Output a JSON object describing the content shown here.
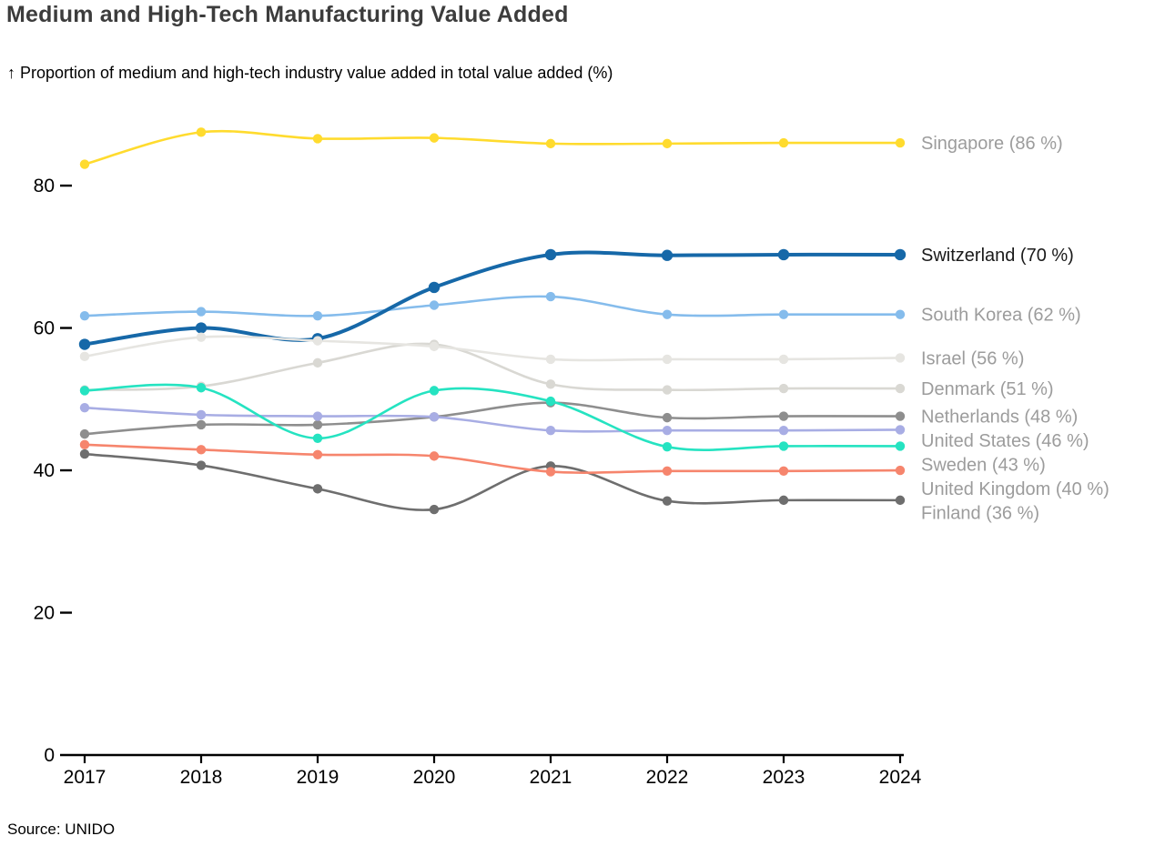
{
  "header": {
    "title": "Medium and High-Tech Manufacturing Value Added",
    "subtitle": "↑ Proportion of medium and high-tech industry value added in total value added (%)"
  },
  "footer": {
    "source": "Source: UNIDO"
  },
  "chart_data": {
    "type": "line",
    "title": "Medium and High-Tech Manufacturing Value Added",
    "ylabel": "Proportion of medium and high-tech industry value added in total value added (%)",
    "x": [
      2017,
      2018,
      2019,
      2020,
      2021,
      2022,
      2023,
      2024
    ],
    "yticks": [
      0,
      20,
      40,
      60,
      80
    ],
    "ylim": [
      0,
      90
    ],
    "grid": false,
    "legend_position": "right-end-labels",
    "series": [
      {
        "name": "Singapore",
        "label": "Singapore (86 %)",
        "color": "#FFDB2E",
        "emphasized": false,
        "values": [
          83.0,
          87.5,
          86.6,
          86.7,
          85.9,
          85.9,
          86.0,
          86.0
        ]
      },
      {
        "name": "Switzerland",
        "label": "Switzerland (70 %)",
        "color": "#1668A8",
        "emphasized": true,
        "values": [
          57.7,
          60.0,
          58.5,
          65.7,
          70.3,
          70.2,
          70.3,
          70.3
        ]
      },
      {
        "name": "South Korea",
        "label": "South Korea (62 %)",
        "color": "#85BCEC",
        "emphasized": false,
        "values": [
          61.7,
          62.3,
          61.7,
          63.2,
          64.4,
          61.9,
          61.9,
          61.9
        ]
      },
      {
        "name": "Israel",
        "label": "Israel (56 %)",
        "color": "#E6E5E1",
        "emphasized": false,
        "values": [
          56.0,
          58.7,
          58.2,
          57.4,
          55.6,
          55.6,
          55.6,
          55.8
        ]
      },
      {
        "name": "Denmark",
        "label": "Denmark (51 %)",
        "color": "#D9D8D3",
        "emphasized": false,
        "values": [
          51.3,
          51.8,
          55.1,
          57.7,
          52.1,
          51.3,
          51.5,
          51.5
        ]
      },
      {
        "name": "Netherlands",
        "label": "Netherlands (48 %)",
        "color": "#8E8E8E",
        "emphasized": false,
        "values": [
          45.1,
          46.4,
          46.4,
          47.5,
          49.5,
          47.4,
          47.6,
          47.6
        ]
      },
      {
        "name": "United States",
        "label": "United States (46 %)",
        "color": "#A8ADE4",
        "emphasized": false,
        "values": [
          48.8,
          47.8,
          47.6,
          47.5,
          45.6,
          45.6,
          45.6,
          45.7
        ]
      },
      {
        "name": "Sweden",
        "label": "Sweden (43 %)",
        "color": "#25E3C1",
        "emphasized": false,
        "values": [
          51.2,
          51.6,
          44.5,
          51.2,
          49.7,
          43.3,
          43.4,
          43.4
        ]
      },
      {
        "name": "United Kingdom",
        "label": "United Kingdom (40 %)",
        "color": "#F6856D",
        "emphasized": false,
        "values": [
          43.6,
          42.9,
          42.2,
          42.0,
          39.8,
          39.9,
          39.9,
          40.0
        ]
      },
      {
        "name": "Finland",
        "label": "Finland (36 %)",
        "color": "#6E6E6E",
        "emphasized": false,
        "values": [
          42.3,
          40.7,
          37.4,
          34.5,
          40.6,
          35.7,
          35.8,
          35.8
        ]
      }
    ],
    "draw_order": [
      "Denmark",
      "Netherlands",
      "United States",
      "Finland",
      "United Kingdom",
      "Sweden",
      "South Korea",
      "Switzerland",
      "Israel",
      "Singapore"
    ],
    "colors": {
      "end_label": "#9C9C9C",
      "end_label_emphasized": "#1A1A1A",
      "axis": "#000000"
    }
  }
}
